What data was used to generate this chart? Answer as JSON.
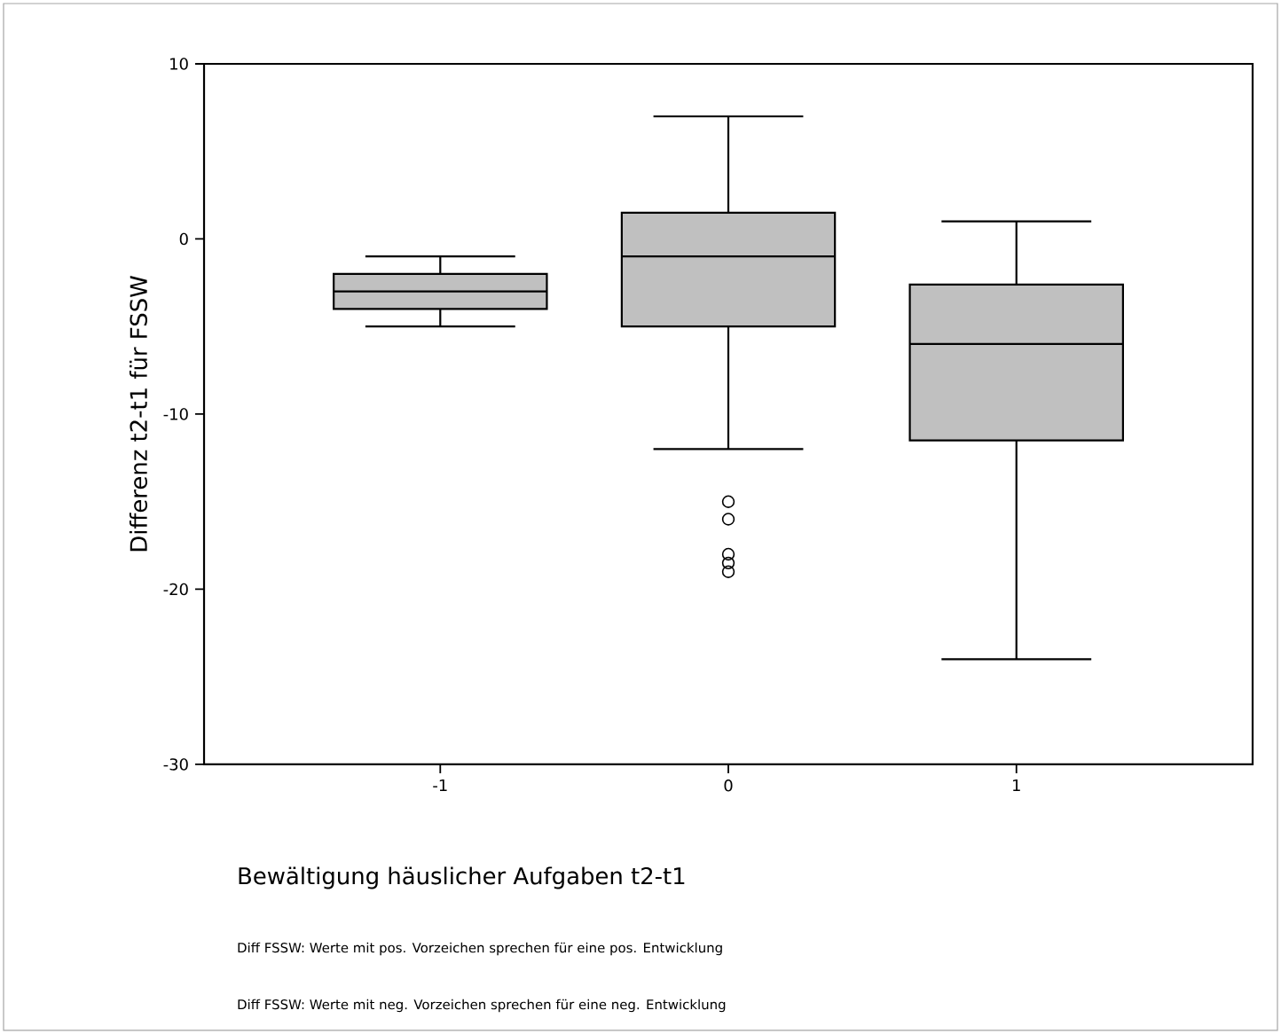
{
  "chart_data": {
    "type": "box",
    "xlabel": "Bewältigung häuslicher Aufgaben t2-t1",
    "ylabel": "Differenz t2-t1 für FSSW",
    "categories": [
      "-1",
      "0",
      "1"
    ],
    "boxes": [
      {
        "low": -5,
        "q1": -4,
        "median": -3,
        "q3": -2,
        "high": -1
      },
      {
        "low": -12,
        "q1": -5,
        "median": -1,
        "q3": 1.5,
        "high": 7,
        "outliers": [
          -15,
          -16,
          -18,
          -18.5,
          -19
        ]
      },
      {
        "low": -24,
        "q1": -11.5,
        "median": -6,
        "q3": -2.6,
        "high": 1
      }
    ],
    "color": "#c0c0c0",
    "marker": "circle",
    "ylim": [
      -30,
      10
    ],
    "yticks": [
      -30,
      -20,
      -10,
      0,
      10
    ],
    "annotations": [
      "Diff FSSW: Werte mit pos. Vorzeichen sprechen für eine pos. Entwicklung",
      "Diff FSSW: Werte mit neg. Vorzeichen sprechen für eine neg. Entwicklung"
    ]
  }
}
